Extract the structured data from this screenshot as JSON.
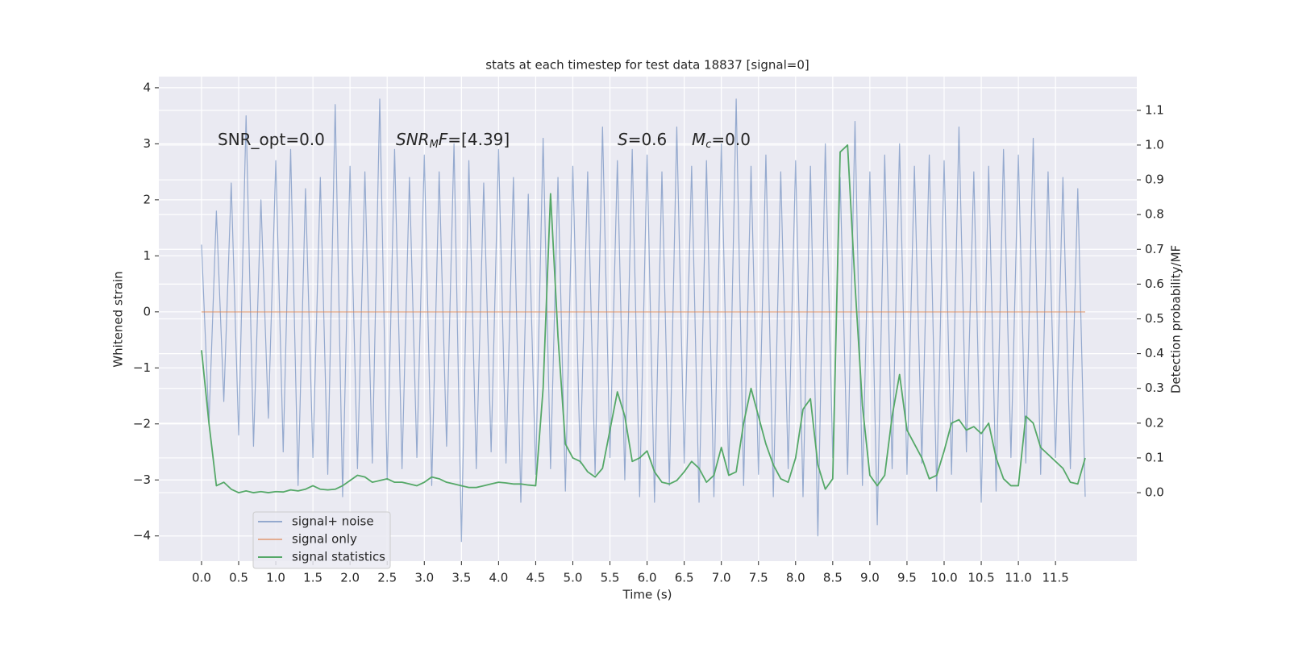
{
  "chart_data": {
    "type": "line",
    "title": "stats at each timestep for test data 18837 [signal=0]",
    "xlabel": "Time (s)",
    "ylabel": "Whitened strain",
    "y2label": "Detection probability/MF",
    "annotations": [
      [
        "SNR_opt=0.0"
      ],
      [
        "SNR",
        "M",
        "F",
        "=[4.39]"
      ],
      [
        "S",
        "=0.6"
      ],
      [
        "M",
        "c",
        "=0.0"
      ]
    ],
    "x": [
      0,
      0.1,
      0.2,
      0.3,
      0.4,
      0.5,
      0.6,
      0.7,
      0.8,
      0.9,
      1,
      1.1,
      1.2,
      1.3,
      1.4,
      1.5,
      1.6,
      1.7,
      1.8,
      1.9,
      2,
      2.1,
      2.2,
      2.3,
      2.4,
      2.5,
      2.6,
      2.7,
      2.8,
      2.9,
      3,
      3.1,
      3.2,
      3.3,
      3.4,
      3.5,
      3.6,
      3.7,
      3.8,
      3.9,
      4,
      4.1,
      4.2,
      4.3,
      4.4,
      4.5,
      4.6,
      4.7,
      4.8,
      4.9,
      5,
      5.1,
      5.2,
      5.3,
      5.4,
      5.5,
      5.6,
      5.7,
      5.8,
      5.9,
      6,
      6.1,
      6.2,
      6.3,
      6.4,
      6.5,
      6.6,
      6.7,
      6.8,
      6.9,
      7,
      7.1,
      7.2,
      7.3,
      7.4,
      7.5,
      7.6,
      7.7,
      7.8,
      7.9,
      8,
      8.1,
      8.2,
      8.3,
      8.4,
      8.5,
      8.6,
      8.7,
      8.8,
      8.9,
      9,
      9.1,
      9.2,
      9.3,
      9.4,
      9.5,
      9.6,
      9.7,
      9.8,
      9.9,
      10,
      10.1,
      10.2,
      10.3,
      10.4,
      10.5,
      10.6,
      10.7,
      10.8,
      10.9,
      11,
      11.1,
      11.2,
      11.3,
      11.4,
      11.5,
      11.6,
      11.7,
      11.8,
      11.9
    ],
    "series": [
      {
        "name": "signal+ noise",
        "color": "#4c72b0",
        "values": [
          1.2,
          -2.0,
          1.8,
          -1.6,
          2.3,
          -2.2,
          3.5,
          -2.4,
          2.0,
          -1.9,
          2.7,
          -2.5,
          2.9,
          -3.1,
          2.2,
          -2.6,
          2.4,
          -2.9,
          3.7,
          -3.3,
          2.6,
          -2.8,
          2.5,
          -2.7,
          3.8,
          -3.0,
          2.9,
          -2.8,
          2.4,
          -2.6,
          2.8,
          -3.1,
          2.5,
          -2.4,
          3.0,
          -4.1,
          2.7,
          -2.8,
          2.3,
          -2.5,
          2.9,
          -2.7,
          2.4,
          -3.4,
          2.1,
          -2.9,
          3.1,
          -2.8,
          2.4,
          -3.2,
          2.6,
          -2.7,
          2.5,
          -2.9,
          3.3,
          -2.6,
          2.7,
          -3.0,
          2.9,
          -3.3,
          2.8,
          -3.4,
          2.5,
          -3.1,
          3.3,
          -2.7,
          2.6,
          -3.4,
          2.7,
          -3.3,
          3.0,
          -2.9,
          3.8,
          -3.1,
          2.6,
          -2.9,
          2.8,
          -3.3,
          2.5,
          -2.8,
          2.7,
          -3.3,
          2.6,
          -4.0,
          3.0,
          -2.6,
          2.4,
          -2.9,
          3.4,
          -3.1,
          2.5,
          -3.8,
          2.8,
          -2.8,
          3.0,
          -2.9,
          2.6,
          -2.7,
          2.8,
          -3.2,
          2.7,
          -2.9,
          3.3,
          -2.5,
          2.5,
          -3.4,
          2.6,
          -3.2,
          2.9,
          -2.6,
          2.8,
          -2.7,
          3.1,
          -2.9,
          2.5,
          -2.6,
          2.4,
          -2.8,
          2.2,
          -3.3
        ]
      },
      {
        "name": "signal only",
        "color": "#dd8452",
        "values": [
          0,
          0,
          0,
          0,
          0,
          0,
          0,
          0,
          0,
          0,
          0,
          0,
          0,
          0,
          0,
          0,
          0,
          0,
          0,
          0,
          0,
          0,
          0,
          0,
          0,
          0,
          0,
          0,
          0,
          0,
          0,
          0,
          0,
          0,
          0,
          0,
          0,
          0,
          0,
          0,
          0,
          0,
          0,
          0,
          0,
          0,
          0,
          0,
          0,
          0,
          0,
          0,
          0,
          0,
          0,
          0,
          0,
          0,
          0,
          0,
          0,
          0,
          0,
          0,
          0,
          0,
          0,
          0,
          0,
          0,
          0,
          0,
          0,
          0,
          0,
          0,
          0,
          0,
          0,
          0,
          0,
          0,
          0,
          0,
          0,
          0,
          0,
          0,
          0,
          0,
          0,
          0,
          0,
          0,
          0,
          0,
          0,
          0,
          0,
          0,
          0,
          0,
          0,
          0,
          0,
          0,
          0,
          0,
          0,
          0,
          0,
          0,
          0,
          0,
          0,
          0,
          0,
          0,
          0,
          0
        ]
      },
      {
        "name": "signal statistics",
        "color": "#55a868",
        "axis": "y2",
        "values": [
          0.41,
          0.2,
          0.02,
          0.03,
          0.01,
          0.0,
          0.005,
          0.0,
          0.003,
          0.0,
          0.003,
          0.002,
          0.008,
          0.005,
          0.01,
          0.02,
          0.01,
          0.008,
          0.01,
          0.02,
          0.035,
          0.05,
          0.045,
          0.03,
          0.035,
          0.04,
          0.03,
          0.03,
          0.025,
          0.02,
          0.03,
          0.045,
          0.04,
          0.03,
          0.025,
          0.02,
          0.015,
          0.015,
          0.02,
          0.025,
          0.03,
          0.028,
          0.025,
          0.025,
          0.022,
          0.02,
          0.3,
          0.86,
          0.45,
          0.14,
          0.1,
          0.09,
          0.06,
          0.045,
          0.07,
          0.18,
          0.29,
          0.22,
          0.09,
          0.1,
          0.12,
          0.06,
          0.03,
          0.025,
          0.035,
          0.06,
          0.09,
          0.07,
          0.03,
          0.05,
          0.13,
          0.05,
          0.06,
          0.2,
          0.3,
          0.22,
          0.14,
          0.08,
          0.04,
          0.03,
          0.1,
          0.24,
          0.27,
          0.08,
          0.01,
          0.04,
          0.98,
          1.0,
          0.6,
          0.25,
          0.05,
          0.02,
          0.05,
          0.22,
          0.34,
          0.18,
          0.14,
          0.1,
          0.04,
          0.05,
          0.12,
          0.2,
          0.21,
          0.18,
          0.19,
          0.17,
          0.2,
          0.1,
          0.04,
          0.02,
          0.02,
          0.22,
          0.2,
          0.13,
          0.11,
          0.09,
          0.07,
          0.03,
          0.025,
          0.1
        ]
      }
    ],
    "xlim": [
      -0.575,
      12.595
    ],
    "xticks": [
      {
        "value": 0,
        "label": "0.0"
      },
      {
        "value": 0.5,
        "label": "0.5"
      },
      {
        "value": 1,
        "label": "1.0"
      },
      {
        "value": 1.5,
        "label": "1.5"
      },
      {
        "value": 2,
        "label": "2.0"
      },
      {
        "value": 2.5,
        "label": "2.5"
      },
      {
        "value": 3,
        "label": "3.0"
      },
      {
        "value": 3.5,
        "label": "3.5"
      },
      {
        "value": 4,
        "label": "4.0"
      },
      {
        "value": 4.5,
        "label": "4.5"
      },
      {
        "value": 5,
        "label": "5.0"
      },
      {
        "value": 5.5,
        "label": "5.5"
      },
      {
        "value": 6,
        "label": "6.0"
      },
      {
        "value": 6.5,
        "label": "6.5"
      },
      {
        "value": 7,
        "label": "7.0"
      },
      {
        "value": 7.5,
        "label": "7.5"
      },
      {
        "value": 8,
        "label": "8.0"
      },
      {
        "value": 8.5,
        "label": "8.5"
      },
      {
        "value": 9,
        "label": "9.0"
      },
      {
        "value": 9.5,
        "label": "9.5"
      },
      {
        "value": 10,
        "label": "10.0"
      },
      {
        "value": 10.5,
        "label": "10.5"
      },
      {
        "value": 11,
        "label": "11.0"
      },
      {
        "value": 11.5,
        "label": "11.5"
      }
    ],
    "ylim": [
      -4.45,
      4.2
    ],
    "yticks": [
      {
        "value": -4,
        "label": "−4"
      },
      {
        "value": -3,
        "label": "−3"
      },
      {
        "value": -2,
        "label": "−2"
      },
      {
        "value": -1,
        "label": "−1"
      },
      0,
      1,
      2,
      3,
      4
    ],
    "y2lim": [
      -0.197,
      1.197
    ],
    "y2ticks": [
      {
        "value": 0,
        "label": "0.0"
      },
      {
        "value": 0.1,
        "label": "0.1"
      },
      {
        "value": 0.2,
        "label": "0.2"
      },
      {
        "value": 0.3,
        "label": "0.3"
      },
      {
        "value": 0.4,
        "label": "0.4"
      },
      {
        "value": 0.5,
        "label": "0.5"
      },
      {
        "value": 0.6,
        "label": "0.6"
      },
      {
        "value": 0.7,
        "label": "0.7"
      },
      {
        "value": 0.8,
        "label": "0.8"
      },
      {
        "value": 0.9,
        "label": "0.9"
      },
      {
        "value": 1,
        "label": "1.0"
      },
      {
        "value": 1.1,
        "label": "1.1"
      }
    ],
    "grid": true,
    "legend": "lower left"
  }
}
